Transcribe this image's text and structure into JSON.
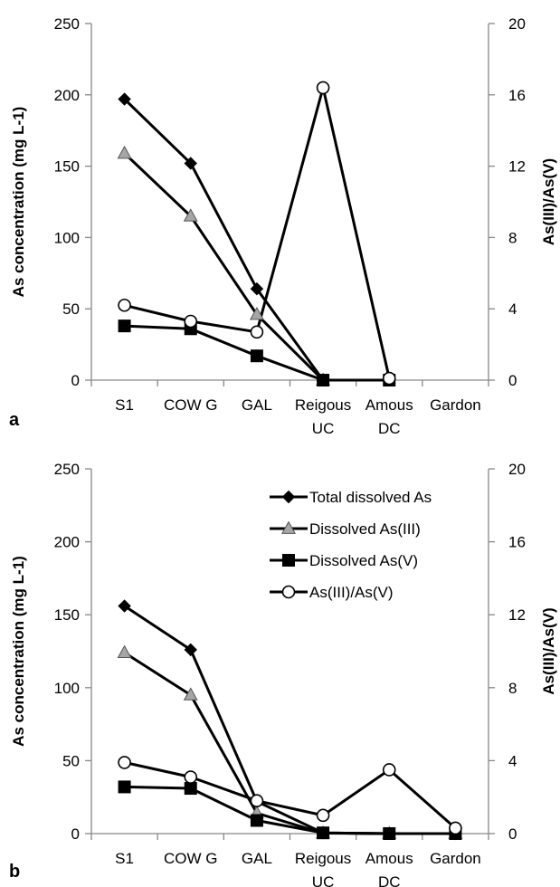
{
  "chart_data": [
    {
      "panel_label": "a",
      "type": "line",
      "categories": [
        "S1",
        "COW G",
        "GAL",
        "Reigous UC",
        "Amous DC",
        "Gardon"
      ],
      "category_labels": [
        [
          "S1"
        ],
        [
          "COW G"
        ],
        [
          "GAL"
        ],
        [
          "Reigous",
          "UC"
        ],
        [
          "Amous",
          "DC"
        ],
        [
          "Gardon"
        ]
      ],
      "ylabel": "As concentration (mg L-1)",
      "ylabel_right": "As(III)/As(V)",
      "ylim": [
        0,
        250
      ],
      "yticks": [
        0,
        50,
        100,
        150,
        200,
        250
      ],
      "ylim_right": [
        0,
        20
      ],
      "yticks_right": [
        0,
        4,
        8,
        12,
        16,
        20
      ],
      "legend": false,
      "series": [
        {
          "key": "total",
          "axis": "left",
          "marker": "diamond",
          "fill": "#000000",
          "values": [
            197,
            152,
            64,
            0,
            null,
            null
          ]
        },
        {
          "key": "as3",
          "axis": "left",
          "marker": "triangle",
          "fill": "#a6a6a6",
          "values": [
            159,
            115,
            46,
            0,
            null,
            null
          ]
        },
        {
          "key": "as5",
          "axis": "left",
          "marker": "square",
          "fill": "#000000",
          "values": [
            38,
            36,
            17,
            0,
            0,
            null
          ]
        },
        {
          "key": "ratio",
          "axis": "right",
          "marker": "circle",
          "fill": "#ffffff",
          "values": [
            4.2,
            3.3,
            2.7,
            16.4,
            0.1,
            null
          ]
        }
      ]
    },
    {
      "panel_label": "b",
      "type": "line",
      "categories": [
        "S1",
        "COW G",
        "GAL",
        "Reigous UC",
        "Amous DC",
        "Gardon"
      ],
      "category_labels": [
        [
          "S1"
        ],
        [
          "COW G"
        ],
        [
          "GAL"
        ],
        [
          "Reigous",
          "UC"
        ],
        [
          "Amous",
          "DC"
        ],
        [
          "Gardon"
        ]
      ],
      "ylabel": "As concentration (mg L-1)",
      "ylabel_right": "As(III)/As(V)",
      "ylim": [
        0,
        250
      ],
      "yticks": [
        0,
        50,
        100,
        150,
        200,
        250
      ],
      "ylim_right": [
        0,
        20
      ],
      "yticks_right": [
        0,
        4,
        8,
        12,
        16,
        20
      ],
      "legend": true,
      "legend_position": "top-right",
      "series": [
        {
          "key": "total",
          "name": "Total dissolved As",
          "axis": "left",
          "marker": "diamond",
          "fill": "#000000",
          "values": [
            156,
            126,
            22,
            0.5,
            0,
            0
          ]
        },
        {
          "key": "as3",
          "name": "Dissolved As(III)",
          "axis": "left",
          "marker": "triangle",
          "fill": "#a6a6a6",
          "values": [
            124,
            95,
            14,
            0.3,
            0,
            0
          ]
        },
        {
          "key": "as5",
          "name": "Dissolved As(V)",
          "axis": "left",
          "marker": "square",
          "fill": "#000000",
          "values": [
            32,
            31,
            9,
            0.5,
            0,
            0
          ]
        },
        {
          "key": "ratio",
          "name": "As(III)/As(V)",
          "axis": "right",
          "marker": "circle",
          "fill": "#ffffff",
          "values": [
            3.9,
            3.1,
            1.8,
            1.0,
            3.5,
            0.3
          ]
        }
      ]
    }
  ]
}
